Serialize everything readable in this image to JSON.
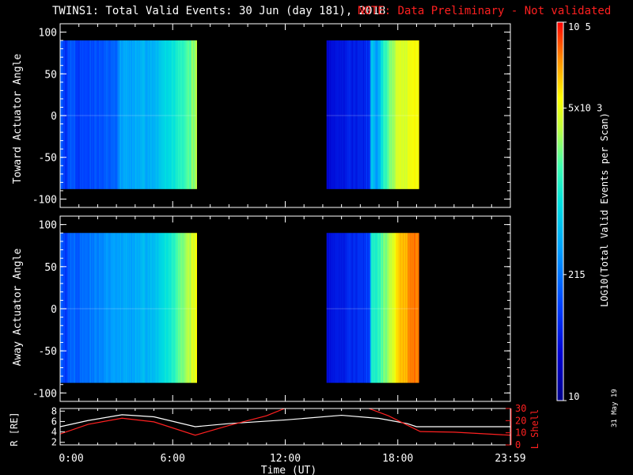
{
  "title": {
    "main": "TWINS1: Total Valid Events: 30 Jun (day 181), 2018",
    "note": "NOTE: Data Preliminary - Not validated"
  },
  "datestamp": "31 May 19",
  "colors": {
    "background": "#000000",
    "axes": "#ffffff",
    "note": "#ff2020",
    "r_line": "#ffffff",
    "lshell_line": "#ff2020"
  },
  "chart_data": [
    {
      "type": "heatmap",
      "name": "toward",
      "ylabel": "Toward Actuator Angle",
      "ylim": [
        -110,
        110
      ],
      "yticks": [
        100,
        50,
        0,
        -50,
        -100
      ],
      "xlim": [
        0,
        24
      ],
      "data_y_range": [
        -88,
        90
      ],
      "colorscale": "log",
      "blocks": [
        {
          "t_start": 0.0,
          "t_end": 7.25,
          "profile": [
            [
              0,
              0.3
            ],
            [
              0.3,
              0.22
            ],
            [
              0.6,
              0.3
            ],
            [
              1.0,
              0.24
            ],
            [
              2.0,
              0.28
            ],
            [
              3.0,
              0.3
            ],
            [
              3.2,
              0.4
            ],
            [
              4.0,
              0.42
            ],
            [
              5.0,
              0.44
            ],
            [
              5.5,
              0.5
            ],
            [
              6.0,
              0.54
            ],
            [
              6.5,
              0.58
            ],
            [
              6.9,
              0.64
            ],
            [
              7.25,
              0.7
            ]
          ]
        },
        {
          "t_start": 14.2,
          "t_end": 19.1,
          "profile": [
            [
              14.2,
              0.12
            ],
            [
              14.5,
              0.15
            ],
            [
              15.0,
              0.17
            ],
            [
              16.0,
              0.19
            ],
            [
              16.5,
              0.22
            ],
            [
              16.6,
              0.48
            ],
            [
              16.9,
              0.4
            ],
            [
              17.2,
              0.55
            ],
            [
              17.6,
              0.68
            ],
            [
              18.0,
              0.74
            ],
            [
              18.5,
              0.77
            ],
            [
              19.1,
              0.8
            ]
          ]
        }
      ]
    },
    {
      "type": "heatmap",
      "name": "away",
      "ylabel": "Away Actuator Angle",
      "ylim": [
        -110,
        110
      ],
      "yticks": [
        100,
        50,
        0,
        -50,
        -100
      ],
      "xlim": [
        0,
        24
      ],
      "data_y_range": [
        -88,
        90
      ],
      "colorscale": "log",
      "blocks": [
        {
          "t_start": 0.0,
          "t_end": 7.25,
          "profile": [
            [
              0,
              0.3
            ],
            [
              0.3,
              0.24
            ],
            [
              0.6,
              0.32
            ],
            [
              1.0,
              0.3
            ],
            [
              2.0,
              0.36
            ],
            [
              3.0,
              0.4
            ],
            [
              4.0,
              0.42
            ],
            [
              5.0,
              0.46
            ],
            [
              5.5,
              0.52
            ],
            [
              6.0,
              0.58
            ],
            [
              6.5,
              0.66
            ],
            [
              6.9,
              0.72
            ],
            [
              7.25,
              0.78
            ]
          ]
        },
        {
          "t_start": 14.2,
          "t_end": 19.1,
          "profile": [
            [
              14.2,
              0.14
            ],
            [
              14.6,
              0.17
            ],
            [
              15.0,
              0.18
            ],
            [
              16.0,
              0.22
            ],
            [
              16.5,
              0.25
            ],
            [
              16.6,
              0.56
            ],
            [
              17.0,
              0.6
            ],
            [
              17.4,
              0.68
            ],
            [
              17.8,
              0.78
            ],
            [
              18.2,
              0.86
            ],
            [
              18.6,
              0.9
            ],
            [
              19.1,
              0.92
            ]
          ]
        }
      ]
    },
    {
      "type": "line",
      "name": "orbit",
      "xlabel": "Time (UT)",
      "ylabel": "R [RE]",
      "ylabel_right": "L Shell",
      "ylim": [
        1.5,
        8.5
      ],
      "yticks": [
        2,
        4,
        6,
        8
      ],
      "y2lim": [
        0,
        30
      ],
      "y2ticks": [
        0,
        10,
        20,
        30
      ],
      "xlim": [
        0,
        24
      ],
      "xticks": [
        "0:00",
        "6:00",
        "12:00",
        "18:00",
        "23:59"
      ],
      "series": [
        {
          "values_x": [
            0,
            1.5,
            3.3,
            5.0,
            7.2,
            9.0,
            12.0,
            15.0,
            17.0,
            18.5,
            19.0,
            21.0,
            24.0
          ],
          "values_y": [
            5.0,
            6.2,
            7.3,
            6.9,
            5.0,
            5.6,
            6.3,
            7.2,
            6.6,
            5.6,
            5.0,
            5.0,
            5.0
          ]
        },
        {
          "values_x": [
            0,
            1.5,
            3.3,
            5.0,
            7.2,
            9.0,
            11.0,
            12.2,
            16.2,
            17.5,
            19.2,
            21.0,
            24.0
          ],
          "values_y": [
            9.0,
            17.0,
            22.0,
            19.0,
            8.0,
            16.0,
            24.0,
            31.5,
            31.5,
            24.0,
            11.0,
            10.5,
            8.0
          ]
        }
      ]
    }
  ],
  "colorbar": {
    "label": "LOG10(Total Valid Events per Scan)",
    "ticks": [
      "10",
      "215",
      "5x10 3",
      "10 5"
    ],
    "tick_values": [
      0.0,
      0.333,
      0.773,
      1.0
    ]
  }
}
